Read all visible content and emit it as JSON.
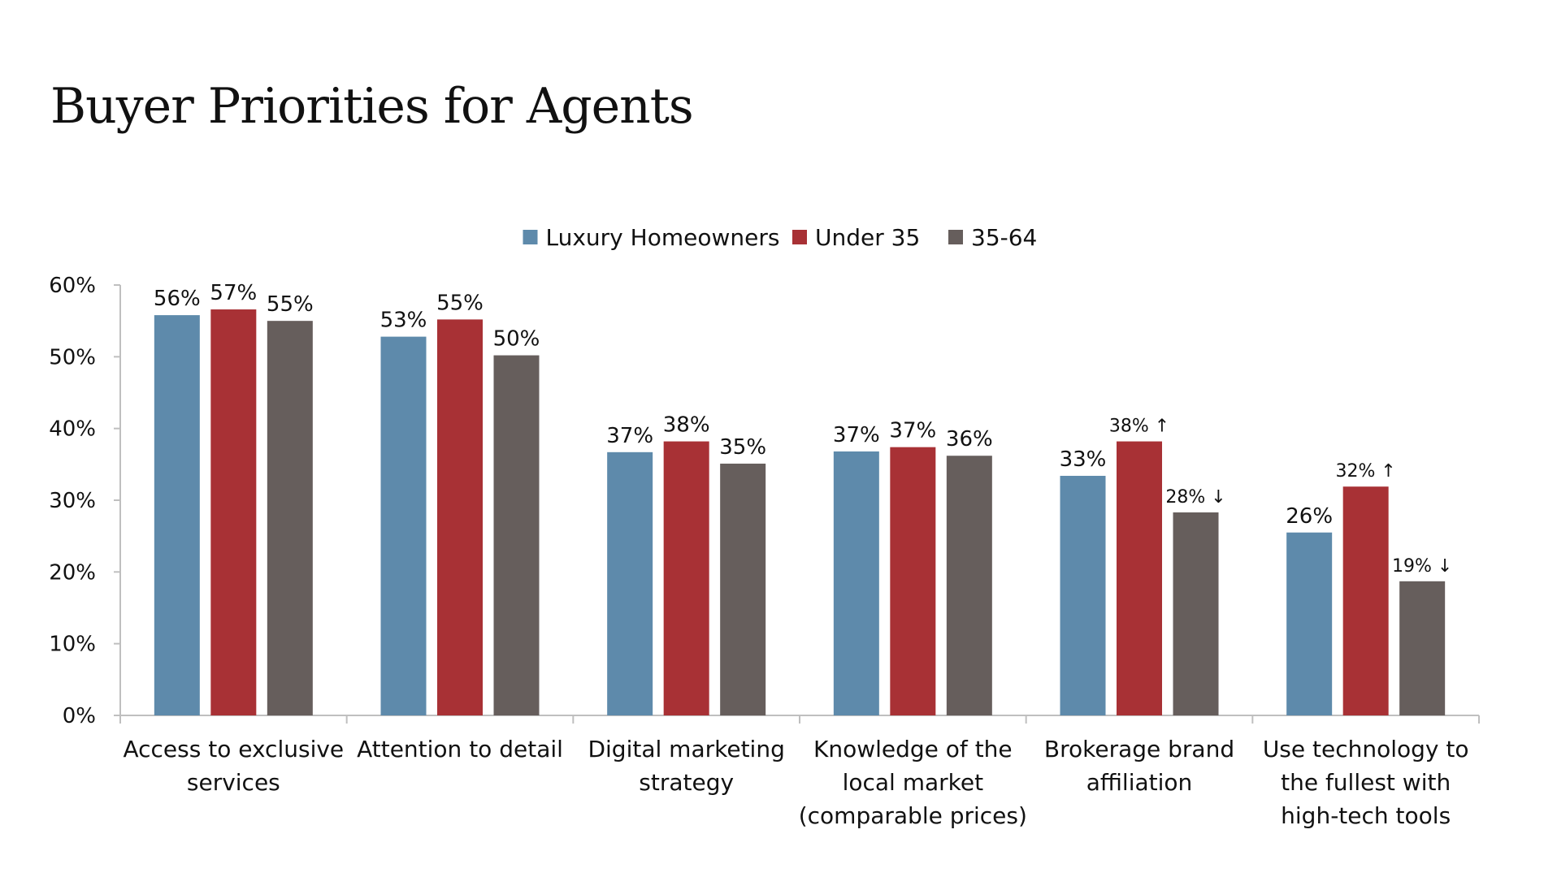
{
  "page": {
    "title": "Buyer Priorities for Agents"
  },
  "chart_data": {
    "type": "bar",
    "title": "Buyer Priorities for Agents",
    "xlabel": "",
    "ylabel": "",
    "ylim": [
      0,
      60
    ],
    "yticks": [
      "0%",
      "10%",
      "20%",
      "30%",
      "40%",
      "50%",
      "60%"
    ],
    "yticks_values": [
      0,
      10,
      20,
      30,
      40,
      50,
      60
    ],
    "grid": false,
    "legend_position": "top-center",
    "categories": [
      [
        "Access to exclusive",
        "services"
      ],
      [
        "Attention to detail"
      ],
      [
        "Digital marketing",
        "strategy"
      ],
      [
        "Knowledge of the",
        "local market",
        "(comparable prices)"
      ],
      [
        "Brokerage brand",
        "affiliation"
      ],
      [
        "Use technology to",
        "the fullest with",
        "high-tech tools"
      ]
    ],
    "series": [
      {
        "name": "Luxury Homeowners",
        "color": "#5E8AAB",
        "values": [
          55.8,
          52.8,
          36.7,
          36.8,
          33.4,
          25.5
        ],
        "labels": [
          "56%",
          "53%",
          "37%",
          "37%",
          "33%",
          "26%"
        ],
        "label_colors": [
          "#111111",
          "#111111",
          "#111111",
          "#111111",
          "#111111",
          "#111111"
        ]
      },
      {
        "name": "Under 35",
        "color": "#A83135",
        "values": [
          56.6,
          55.2,
          38.2,
          37.4,
          38.2,
          31.9
        ],
        "labels": [
          "57%",
          "55%",
          "38%",
          "37%",
          "38% ↑",
          "32% ↑"
        ],
        "label_colors": [
          "#111111",
          "#111111",
          "#111111",
          "#111111",
          "#1515C8",
          "#1515C8"
        ]
      },
      {
        "name": "35-64",
        "color": "#665E5C",
        "values": [
          55.0,
          50.2,
          35.1,
          36.2,
          28.3,
          18.7
        ],
        "labels": [
          "55%",
          "50%",
          "35%",
          "36%",
          "28% ↓",
          "19% ↓"
        ],
        "label_colors": [
          "#111111",
          "#111111",
          "#111111",
          "#111111",
          "#D63B2F",
          "#D63B2F"
        ]
      }
    ]
  }
}
